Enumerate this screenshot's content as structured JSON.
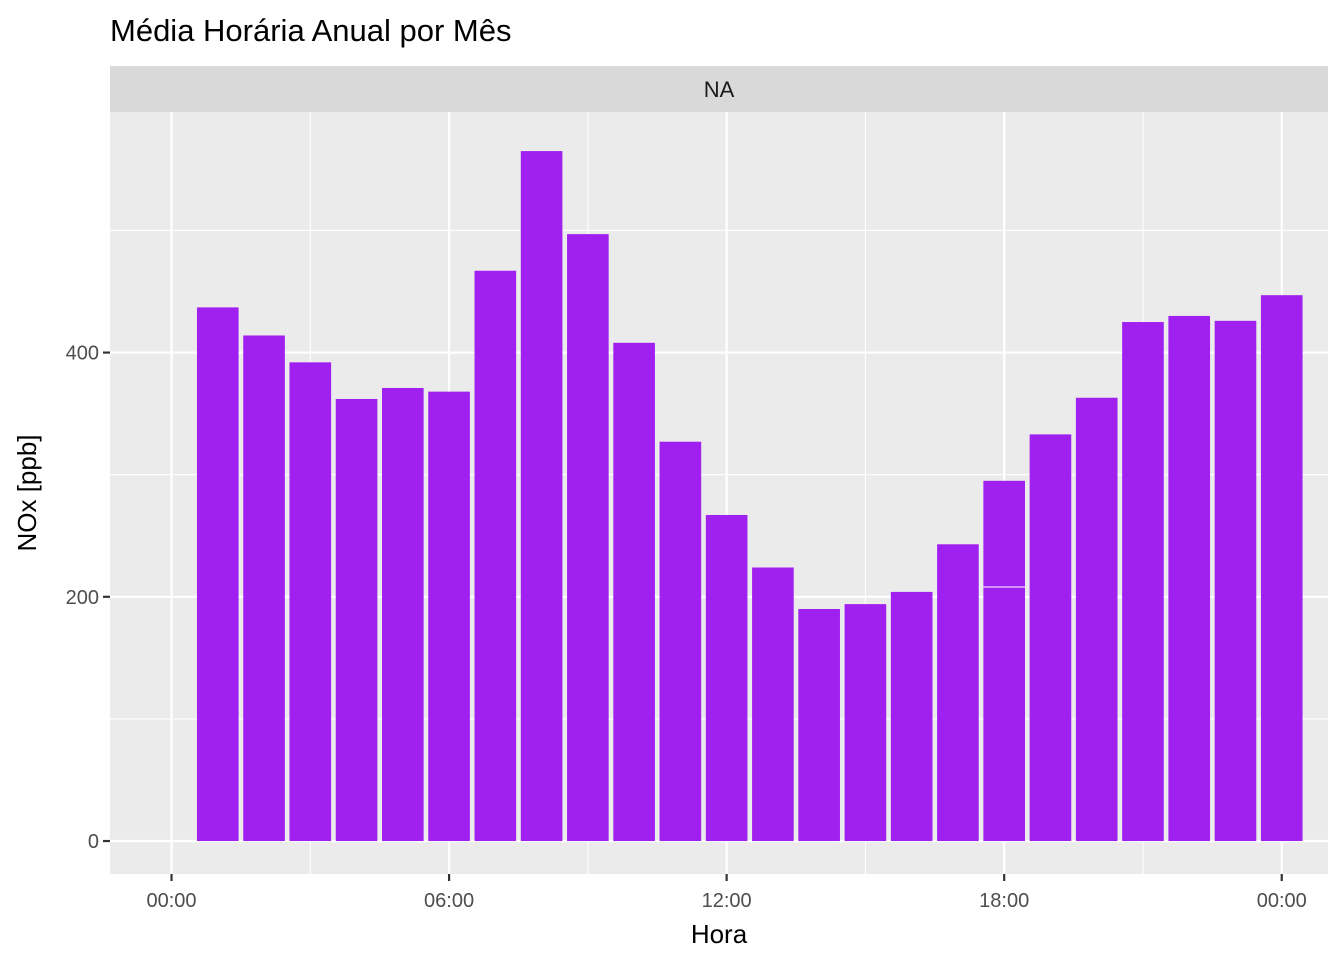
{
  "chart_data": {
    "type": "bar",
    "title": "Média Horária Anual por Mês",
    "facet_label": "NA",
    "xlabel": "Hora",
    "ylabel": "NOx [ppb]",
    "x_ticks": [
      "00:00",
      "06:00",
      "12:00",
      "18:00",
      "00:00"
    ],
    "y_ticks": [
      0,
      200,
      400
    ],
    "ylim": [
      -27,
      597
    ],
    "grid": true,
    "colors": {
      "bar": "#A020F0",
      "panel": "#EBEBEB",
      "strip": "#D9D9D9",
      "grid": "#FFFFFF"
    },
    "series": [
      {
        "hours": [
          1,
          2,
          3,
          4,
          5,
          6,
          7,
          8,
          9,
          10,
          11,
          12,
          13,
          14,
          15,
          16,
          17,
          18,
          19,
          20,
          21,
          22,
          23,
          24
        ],
        "values": [
          437,
          414,
          392,
          362,
          371,
          368,
          467,
          565,
          497,
          408,
          327,
          267,
          224,
          190,
          194,
          204,
          243,
          295,
          333,
          363,
          425,
          430,
          426,
          447
        ]
      }
    ],
    "segment_split": {
      "hour": 18,
      "value": 208
    }
  }
}
